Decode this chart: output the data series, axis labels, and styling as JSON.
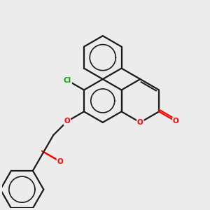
{
  "bg_color": "#ececec",
  "bond_color": "#1a1a1a",
  "oxygen_color": "#ff0000",
  "chlorine_color": "#00aa00",
  "bond_lw": 1.6,
  "figsize": [
    3.0,
    3.0
  ],
  "dpi": 100,
  "xlim": [
    0,
    10
  ],
  "ylim": [
    0,
    10
  ]
}
